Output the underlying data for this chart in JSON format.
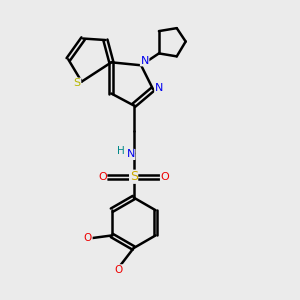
{
  "bg_color": "#ebebeb",
  "bond_color": "#000000",
  "bond_width": 1.8,
  "atom_colors": {
    "S_thio": "#b8b800",
    "S_sulfo": "#ccaa00",
    "N": "#0000ee",
    "O": "#ee0000",
    "H": "#008888",
    "C": "#000000"
  },
  "figsize": [
    3.0,
    3.0
  ],
  "dpi": 100
}
